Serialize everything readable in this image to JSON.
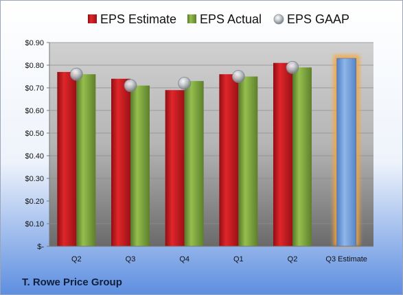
{
  "chart_data": {
    "type": "bar",
    "title": "",
    "xlabel": "",
    "ylabel": "",
    "categories": [
      "Q2",
      "Q3",
      "Q4",
      "Q1",
      "Q2",
      "Q3 Estimate"
    ],
    "ylim": [
      0,
      0.9
    ],
    "yticks": [
      "$-",
      "$0.10",
      "$0.20",
      "$0.30",
      "$0.40",
      "$0.50",
      "$0.60",
      "$0.70",
      "$0.80",
      "$0.90"
    ],
    "legend_position": "top",
    "grid": true,
    "series": [
      {
        "name": "EPS Estimate",
        "color": "#c0181d",
        "values": [
          0.77,
          0.74,
          0.69,
          0.76,
          0.81,
          null
        ]
      },
      {
        "name": "EPS Actual",
        "color": "#7da13d",
        "values": [
          0.76,
          0.71,
          0.73,
          0.75,
          0.79,
          null
        ]
      },
      {
        "name": "EPS GAAP",
        "color": "#b5b9c0",
        "marker": "circle",
        "values": [
          0.76,
          0.71,
          0.72,
          0.75,
          0.79,
          null
        ]
      }
    ],
    "estimate_bar": {
      "category": "Q3 Estimate",
      "value": 0.83,
      "color": "#6b9bd8",
      "glow_color": "#f6a53c"
    }
  },
  "footer": {
    "company": "T. Rowe Price Group"
  }
}
